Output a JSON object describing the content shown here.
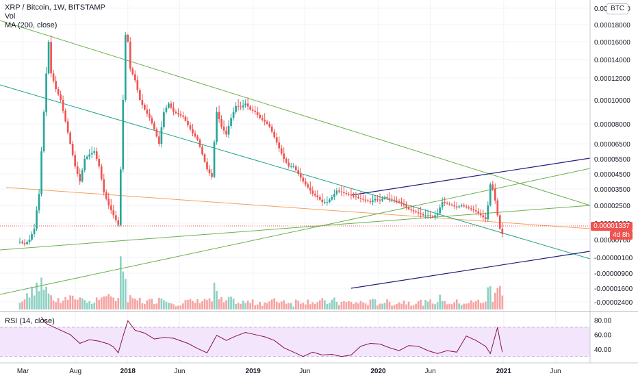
{
  "header": {
    "symbol_line": "XRP / Bitcoin, 1W, BITSTAMP",
    "vol_label": "Vol",
    "ma_label": "MA (200, close)",
    "rsi_label": "RSI (14, close)"
  },
  "price_axis": {
    "currency_badge": "BTC",
    "last_price": "0.00001337",
    "countdown": "4d 8h"
  },
  "colors": {
    "up": "#26a69a",
    "down": "#ef5350",
    "vol_up": "#8ed1c4",
    "vol_down": "#f5a4a2",
    "ma": "#f6a05b",
    "trend_green": "#6ab04c",
    "trend_teal": "#1aa58a",
    "channel": "#1f1f7a",
    "rsi_line": "#880e4f",
    "rsi_band": "#f3e5fc"
  },
  "chart_data": [
    {
      "type": "candlestick",
      "title": "XRP / Bitcoin, 1W, BITSTAMP",
      "scale": "custom (non-linear) price scale, BTC",
      "x_ticks": [
        "Mar",
        "Aug",
        "2018",
        "Jun",
        "2019",
        "Jun",
        "2020",
        "Jun",
        "2021",
        "Jun"
      ],
      "y_ticks": [
        "0.00020000",
        "0.00018000",
        "0.00016000",
        "0.00014000",
        "0.00012000",
        "0.00010000",
        "0.00008000",
        "0.00006500",
        "0.00005500",
        "0.00004500",
        "0.00003500",
        "0.00002500",
        "0.00001600",
        "0.00000700",
        "-0.00000100",
        "-0.00000900",
        "-0.00001600",
        "-0.00002400"
      ],
      "last_value": 1.337e-05,
      "grid": true,
      "series": [
        {
          "name": "XRP / Bitcoin",
          "close_path": [
            [
              "2017-02-20",
              6e-06
            ],
            [
              "2017-03-06",
              5e-06
            ],
            [
              "2017-03-20",
              7e-06
            ],
            [
              "2017-04-03",
              1.3e-05
            ],
            [
              "2017-04-17",
              3.2e-05
            ],
            [
              "2017-04-24",
              6e-05
            ],
            [
              "2017-05-01",
              9e-05
            ],
            [
              "2017-05-08",
              0.000125
            ],
            [
              "2017-05-15",
              0.00016
            ],
            [
              "2017-05-22",
              0.000125
            ],
            [
              "2017-06-05",
              0.00011
            ],
            [
              "2017-06-19",
              0.0001
            ],
            [
              "2017-07-03",
              8.2e-05
            ],
            [
              "2017-07-17",
              6.5e-05
            ],
            [
              "2017-07-31",
              5e-05
            ],
            [
              "2017-08-14",
              4e-05
            ],
            [
              "2017-08-28",
              5.5e-05
            ],
            [
              "2017-09-11",
              5.8e-05
            ],
            [
              "2017-09-25",
              6e-05
            ],
            [
              "2017-10-09",
              5e-05
            ],
            [
              "2017-10-23",
              3.3e-05
            ],
            [
              "2017-11-06",
              2.5e-05
            ],
            [
              "2017-11-20",
              2e-05
            ],
            [
              "2017-12-04",
              1.5e-05
            ],
            [
              "2017-12-11",
              4.8e-05
            ],
            [
              "2017-12-18",
              0.0001
            ],
            [
              "2017-12-25",
              0.000168
            ],
            [
              "2018-01-01",
              0.00016
            ],
            [
              "2018-01-08",
              0.00013
            ],
            [
              "2018-01-22",
              0.000118
            ],
            [
              "2018-02-05",
              0.0001
            ],
            [
              "2018-02-19",
              9.2e-05
            ],
            [
              "2018-03-05",
              8.5e-05
            ],
            [
              "2018-03-19",
              7.6e-05
            ],
            [
              "2018-04-02",
              6.5e-05
            ],
            [
              "2018-04-16",
              9e-05
            ],
            [
              "2018-04-30",
              9.7e-05
            ],
            [
              "2018-05-14",
              9e-05
            ],
            [
              "2018-05-28",
              8.8e-05
            ],
            [
              "2018-06-11",
              8.6e-05
            ],
            [
              "2018-06-25",
              7.9e-05
            ],
            [
              "2018-07-09",
              7.3e-05
            ],
            [
              "2018-07-23",
              6.8e-05
            ],
            [
              "2018-08-06",
              5.8e-05
            ],
            [
              "2018-08-20",
              4.8e-05
            ],
            [
              "2018-09-03",
              4.3e-05
            ],
            [
              "2018-09-17",
              9e-05
            ],
            [
              "2018-10-01",
              7.8e-05
            ],
            [
              "2018-10-15",
              7.2e-05
            ],
            [
              "2018-10-29",
              8.5e-05
            ],
            [
              "2018-11-12",
              9.5e-05
            ],
            [
              "2018-11-26",
              9.4e-05
            ],
            [
              "2018-12-10",
              9.7e-05
            ],
            [
              "2018-12-24",
              9.2e-05
            ],
            [
              "2019-01-07",
              9e-05
            ],
            [
              "2019-01-21",
              8.5e-05
            ],
            [
              "2019-02-04",
              8.2e-05
            ],
            [
              "2019-02-18",
              7.8e-05
            ],
            [
              "2019-03-04",
              7e-05
            ],
            [
              "2019-03-18",
              6.2e-05
            ],
            [
              "2019-04-01",
              5.5e-05
            ],
            [
              "2019-04-15",
              5e-05
            ],
            [
              "2019-04-29",
              5e-05
            ],
            [
              "2019-05-13",
              4.5e-05
            ],
            [
              "2019-05-27",
              4e-05
            ],
            [
              "2019-06-10",
              3.6e-05
            ],
            [
              "2019-06-24",
              3.2e-05
            ],
            [
              "2019-07-08",
              3e-05
            ],
            [
              "2019-07-22",
              2.7e-05
            ],
            [
              "2019-08-05",
              2.7e-05
            ],
            [
              "2019-08-19",
              3e-05
            ],
            [
              "2019-09-02",
              3.4e-05
            ],
            [
              "2019-09-16",
              3.3e-05
            ],
            [
              "2019-09-30",
              3.2e-05
            ],
            [
              "2019-10-14",
              3.1e-05
            ],
            [
              "2019-10-28",
              3e-05
            ],
            [
              "2019-11-11",
              2.9e-05
            ],
            [
              "2019-11-25",
              2.8e-05
            ],
            [
              "2019-12-09",
              2.7e-05
            ],
            [
              "2019-12-23",
              2.9e-05
            ],
            [
              "2020-01-06",
              2.8e-05
            ],
            [
              "2020-01-20",
              3e-05
            ],
            [
              "2020-02-03",
              2.9e-05
            ],
            [
              "2020-02-17",
              2.8e-05
            ],
            [
              "2020-03-02",
              2.7e-05
            ],
            [
              "2020-03-16",
              2.5e-05
            ],
            [
              "2020-03-30",
              2.3e-05
            ],
            [
              "2020-04-13",
              2.2e-05
            ],
            [
              "2020-04-27",
              2.1e-05
            ],
            [
              "2020-05-11",
              2e-05
            ],
            [
              "2020-05-25",
              2e-05
            ],
            [
              "2020-06-08",
              1.9e-05
            ],
            [
              "2020-06-22",
              2.1e-05
            ],
            [
              "2020-07-06",
              2.7e-05
            ],
            [
              "2020-07-20",
              2.6e-05
            ],
            [
              "2020-08-03",
              2.5e-05
            ],
            [
              "2020-08-17",
              2.4e-05
            ],
            [
              "2020-08-31",
              2.5e-05
            ],
            [
              "2020-09-14",
              2.4e-05
            ],
            [
              "2020-09-28",
              2.3e-05
            ],
            [
              "2020-10-12",
              2.2e-05
            ],
            [
              "2020-10-26",
              2e-05
            ],
            [
              "2020-11-09",
              1.8e-05
            ],
            [
              "2020-11-16",
              2.5e-05
            ],
            [
              "2020-11-23",
              3.8e-05
            ],
            [
              "2020-11-30",
              3.5e-05
            ],
            [
              "2020-12-07",
              2.8e-05
            ],
            [
              "2020-12-14",
              2e-05
            ],
            [
              "2020-12-21",
              1.3e-05
            ],
            [
              "2020-12-28",
              1e-05
            ]
          ]
        },
        {
          "name": "MA (200, close)",
          "line": [
            [
              "2017-02-20",
              3.6e-05
            ],
            [
              "2021-01-04",
              1.3e-05
            ]
          ]
        }
      ]
    },
    {
      "type": "bar",
      "title": "Vol",
      "note": "weekly volume histogram, colored by candle direction; peaks around Dec 2017 / Jan 2018"
    },
    {
      "type": "line",
      "title": "RSI (14, close)",
      "y_ticks": [
        80,
        60,
        40
      ],
      "ylim": [
        25,
        85
      ],
      "band": [
        30,
        70
      ],
      "x_ticks": [
        "Mar",
        "Aug",
        "2018",
        "Jun",
        "2019",
        "Jun",
        "2020",
        "Jun",
        "2021",
        "Jun"
      ],
      "series": [
        {
          "name": "RSI (14, close)",
          "values": [
            [
              "2017-04-24",
              84
            ],
            [
              "2017-05-08",
              75
            ],
            [
              "2017-05-22",
              72
            ],
            [
              "2017-06-19",
              66
            ],
            [
              "2017-07-17",
              60
            ],
            [
              "2017-08-14",
              48
            ],
            [
              "2017-09-11",
              53
            ],
            [
              "2017-10-09",
              51
            ],
            [
              "2017-11-06",
              47
            ],
            [
              "2017-11-20",
              43
            ],
            [
              "2017-12-04",
              35
            ],
            [
              "2017-12-18",
              58
            ],
            [
              "2018-01-01",
              79
            ],
            [
              "2018-01-22",
              66
            ],
            [
              "2018-02-19",
              62
            ],
            [
              "2018-03-19",
              54
            ],
            [
              "2018-04-16",
              56
            ],
            [
              "2018-05-14",
              55
            ],
            [
              "2018-06-25",
              48
            ],
            [
              "2018-07-23",
              41
            ],
            [
              "2018-08-20",
              35
            ],
            [
              "2018-09-17",
              59
            ],
            [
              "2018-10-15",
              52
            ],
            [
              "2018-11-12",
              58
            ],
            [
              "2018-12-10",
              63
            ],
            [
              "2019-01-07",
              60
            ],
            [
              "2019-02-04",
              57
            ],
            [
              "2019-03-04",
              52
            ],
            [
              "2019-04-01",
              42
            ],
            [
              "2019-04-29",
              36
            ],
            [
              "2019-05-27",
              30
            ],
            [
              "2019-06-24",
              36
            ],
            [
              "2019-07-22",
              32
            ],
            [
              "2019-08-19",
              33
            ],
            [
              "2019-09-16",
              30
            ],
            [
              "2019-10-14",
              32
            ],
            [
              "2019-11-11",
              44
            ],
            [
              "2019-12-09",
              48
            ],
            [
              "2020-01-06",
              47
            ],
            [
              "2020-02-03",
              42
            ],
            [
              "2020-03-02",
              38
            ],
            [
              "2020-03-30",
              45
            ],
            [
              "2020-04-27",
              44
            ],
            [
              "2020-05-25",
              38
            ],
            [
              "2020-06-22",
              34
            ],
            [
              "2020-07-20",
              38
            ],
            [
              "2020-08-17",
              36
            ],
            [
              "2020-09-14",
              58
            ],
            [
              "2020-10-12",
              52
            ],
            [
              "2020-11-09",
              44
            ],
            [
              "2020-11-23",
              34
            ],
            [
              "2020-12-07",
              58
            ],
            [
              "2020-12-14",
              70
            ],
            [
              "2020-12-21",
              52
            ],
            [
              "2020-12-28",
              36
            ]
          ]
        }
      ]
    }
  ]
}
